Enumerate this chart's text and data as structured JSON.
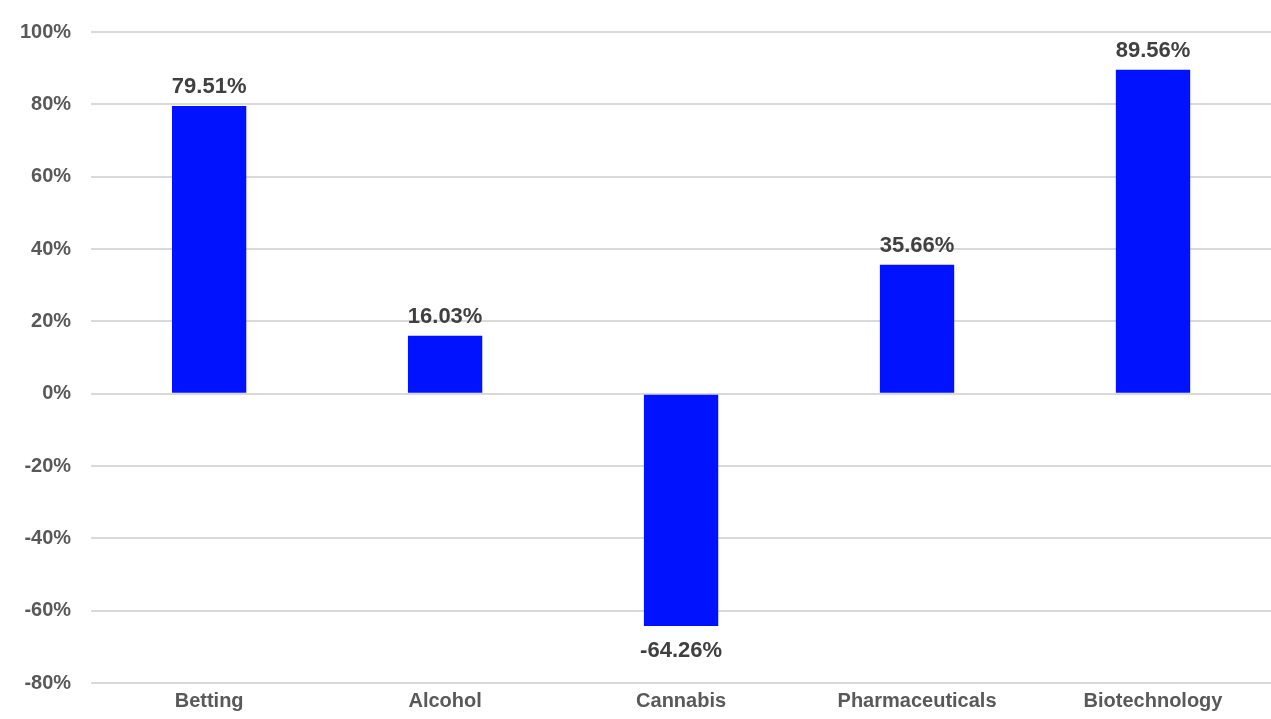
{
  "chart_data": {
    "type": "bar",
    "categories": [
      "Betting",
      "Alcohol",
      "Cannabis",
      "Pharmaceuticals",
      "Biotechnology"
    ],
    "values": [
      79.51,
      16.03,
      -64.26,
      35.66,
      89.56
    ],
    "color": "#0012ff",
    "value_labels": [
      "79.51%",
      "16.03%",
      "-64.26%",
      "35.66%",
      "89.56%"
    ],
    "ylim": [
      -80,
      100
    ],
    "yticks": [
      {
        "value": -80,
        "label": "-80%"
      },
      {
        "value": -60,
        "label": "-60%"
      },
      {
        "value": -40,
        "label": "-40%"
      },
      {
        "value": -20,
        "label": "-20%"
      },
      {
        "value": 0,
        "label": "0%"
      },
      {
        "value": 20,
        "label": "20%"
      },
      {
        "value": 40,
        "label": "40%"
      },
      {
        "value": 60,
        "label": "60%"
      },
      {
        "value": 80,
        "label": "80%"
      },
      {
        "value": 100,
        "label": "100%"
      }
    ],
    "grid": "y",
    "legend": false
  }
}
